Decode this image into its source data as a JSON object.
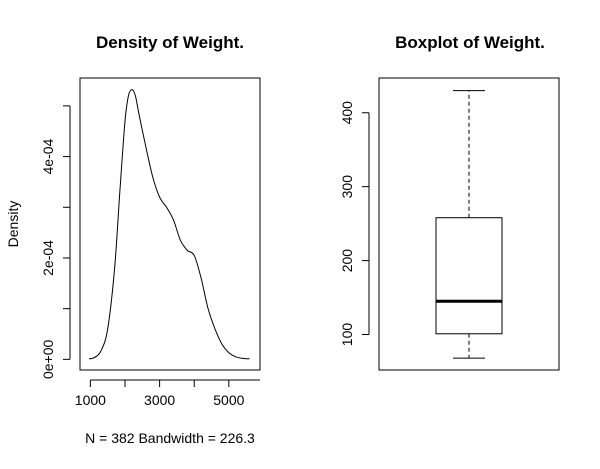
{
  "chart_data": [
    {
      "type": "line",
      "title": "Density of Weight.",
      "xlabel": "N = 382   Bandwidth = 226.3",
      "ylabel": "Density",
      "xlim": [
        700,
        5900
      ],
      "ylim": [
        -2.1e-05,
        0.000555
      ],
      "x_ticks": [
        1000,
        3000,
        5000
      ],
      "x_tick_labels": [
        "1000",
        "3000",
        "5000"
      ],
      "y_ticks": [
        0,
        0.0001,
        0.0002,
        0.0003,
        0.0004,
        0.0005
      ],
      "y_tick_labels": [
        "0e+00",
        "",
        "2e-04",
        "",
        "4e-04",
        ""
      ],
      "series": [
        {
          "x": [
            960,
            1100,
            1300,
            1500,
            1700,
            1850,
            2000,
            2100,
            2200,
            2300,
            2400,
            2600,
            2800,
            3000,
            3200,
            3400,
            3600,
            3800,
            4000,
            4200,
            4400,
            4600,
            4800,
            5000,
            5200,
            5400,
            5600
          ],
          "y": [
            1e-06,
            3e-06,
            1.6e-05,
            6e-05,
            0.00018,
            0.00033,
            0.00047,
            0.00052,
            0.000532,
            0.00052,
            0.000485,
            0.00042,
            0.00036,
            0.00032,
            0.0003,
            0.000275,
            0.000235,
            0.000215,
            0.000205,
            0.00016,
            0.0001,
            6e-05,
            3e-05,
            1.3e-05,
            5e-06,
            2e-06,
            1e-06
          ]
        }
      ]
    },
    {
      "type": "box",
      "title": "Boxplot of Weight.",
      "ylim": [
        52,
        447
      ],
      "y_ticks": [
        100,
        200,
        300,
        400
      ],
      "y_tick_labels": [
        "100",
        "200",
        "300",
        "400"
      ],
      "min": 68,
      "q1": 101,
      "median": 145,
      "q3": 258,
      "max": 430
    }
  ]
}
